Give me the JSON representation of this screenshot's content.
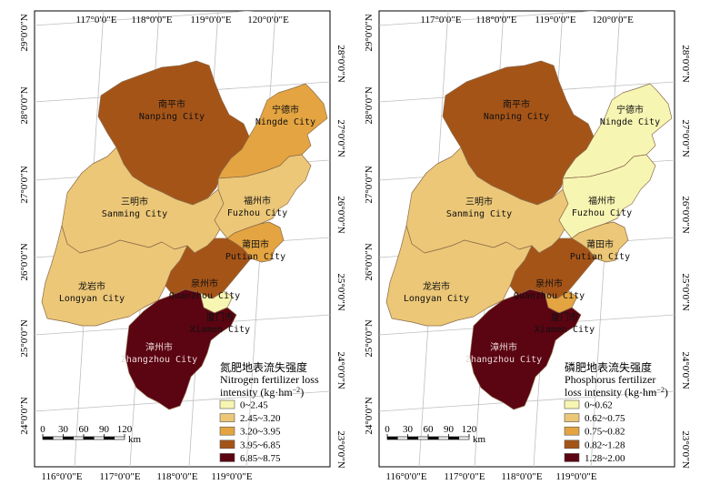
{
  "colors": {
    "c1": "#f7f5b2",
    "c2": "#ecc777",
    "c3": "#e4a441",
    "c4": "#a55418",
    "c5": "#5b0412",
    "boundary": "#8a6a4a",
    "frame": "#000000",
    "grid": "#bfbfbf"
  },
  "maps": [
    {
      "id": "nitrogen",
      "top_lon_labels": [
        "117°0′0″E",
        "118°0′0″E",
        "119°0′0″E",
        "120°0′0″E"
      ],
      "bottom_lon_labels": [
        "116°0′0″E",
        "117°0′0″E",
        "118°0′0″E",
        "119°0′0″E"
      ],
      "left_lat_labels": [
        "29°0′0″N",
        "28°0′0″N",
        "27°0′0″N",
        "26°0′0″N",
        "25°0′0″N",
        "24°0′0″N"
      ],
      "right_lat_labels": [
        "28°0′0″N",
        "27°0′0″N",
        "26°0′0″N",
        "25°0′0″N",
        "24°0′0″N",
        "23°0′0″N"
      ],
      "cities": [
        {
          "zh": "南平市",
          "en": "Nanping City",
          "class": 4
        },
        {
          "zh": "宁德市",
          "en": "Ningde City",
          "class": 3
        },
        {
          "zh": "三明市",
          "en": "Sanming City",
          "class": 2
        },
        {
          "zh": "福州市",
          "en": "Fuzhou City",
          "class": 2
        },
        {
          "zh": "莆田市",
          "en": "Putian City",
          "class": 3
        },
        {
          "zh": "泉州市",
          "en": "Quanzhou City",
          "class": 4
        },
        {
          "zh": "龙岩市",
          "en": "Longyan City",
          "class": 2
        },
        {
          "zh": "厦门市",
          "en": "Xiamen City",
          "class": 1
        },
        {
          "zh": "漳州市",
          "en": "Zhangzhou City",
          "class": 5
        }
      ],
      "legend": {
        "title_zh": "氮肥地表流失强度",
        "title_en_1": "Nitrogen fertilizer loss",
        "title_en_2": "intensity (kg·hm",
        "title_en_sup": "−2",
        "title_en_end": ")",
        "items": [
          {
            "label": "0~2.45",
            "class": 1
          },
          {
            "label": "2.45~3.20",
            "class": 2
          },
          {
            "label": "3.20~3.95",
            "class": 3
          },
          {
            "label": "3.95~6.85",
            "class": 4
          },
          {
            "label": "6.85~8.75",
            "class": 5
          }
        ]
      },
      "scale": {
        "ticks": [
          "0",
          "30",
          "60",
          "90",
          "120"
        ],
        "unit": "km"
      }
    },
    {
      "id": "phosphorus",
      "top_lon_labels": [
        "117°0′0″E",
        "118°0′0″E",
        "119°0′0″E",
        "120°0′0″E"
      ],
      "bottom_lon_labels": [
        "116°0′0″E",
        "117°0′0″E",
        "118°0′0″E",
        "119°0′0″E"
      ],
      "left_lat_labels": [
        "29°0′0″N",
        "28°0′0″N",
        "27°0′0″N",
        "26°0′0″N",
        "25°0′0″N",
        "24°0′0″N"
      ],
      "right_lat_labels": [
        "28°0′0″N",
        "27°0′0″N",
        "26°0′0″N",
        "25°0′0″N",
        "24°0′0″N",
        "23°0′0″N"
      ],
      "cities": [
        {
          "zh": "南平市",
          "en": "Nanping City",
          "class": 4
        },
        {
          "zh": "宁德市",
          "en": "Ningde City",
          "class": 1
        },
        {
          "zh": "三明市",
          "en": "Sanming City",
          "class": 2
        },
        {
          "zh": "福州市",
          "en": "Fuzhou City",
          "class": 1
        },
        {
          "zh": "莆田市",
          "en": "Putian City",
          "class": 2
        },
        {
          "zh": "泉州市",
          "en": "Quanzhou City",
          "class": 4
        },
        {
          "zh": "龙岩市",
          "en": "Longyan City",
          "class": 2
        },
        {
          "zh": "厦门市",
          "en": "Xiamen City",
          "class": 3
        },
        {
          "zh": "漳州市",
          "en": "Zhangzhou City",
          "class": 5
        }
      ],
      "legend": {
        "title_zh": "磷肥地表流失强度",
        "title_en_1": "Phosphorus fertilizer",
        "title_en_2": "loss intensity (kg·hm",
        "title_en_sup": "−2",
        "title_en_end": ")",
        "items": [
          {
            "label": "0~0.62",
            "class": 1
          },
          {
            "label": "0.62~0.75",
            "class": 2
          },
          {
            "label": "0.75~0.82",
            "class": 3
          },
          {
            "label": "0.82~1.28",
            "class": 4
          },
          {
            "label": "1.28~2.00",
            "class": 5
          }
        ]
      },
      "scale": {
        "ticks": [
          "0",
          "30",
          "60",
          "90",
          "120"
        ],
        "unit": "km"
      }
    }
  ]
}
